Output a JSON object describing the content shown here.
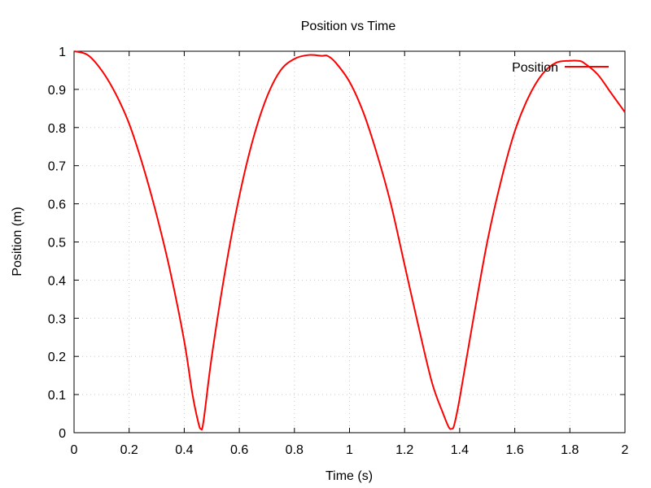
{
  "chart_data": {
    "type": "line",
    "title": "Position vs Time",
    "xlabel": "Time (s)",
    "ylabel": "Position (m)",
    "xlim": [
      0,
      2
    ],
    "ylim": [
      0,
      1
    ],
    "grid": true,
    "legend_position": "top-right",
    "x_ticks": [
      0,
      0.2,
      0.4,
      0.6,
      0.8,
      1,
      1.2,
      1.4,
      1.6,
      1.8,
      2
    ],
    "x_tick_labels": [
      "0",
      "0.2",
      "0.4",
      "0.6",
      "0.8",
      "1",
      "1.2",
      "1.4",
      "1.6",
      "1.8",
      "2"
    ],
    "y_ticks": [
      0,
      0.1,
      0.2,
      0.3,
      0.4,
      0.5,
      0.6,
      0.7,
      0.8,
      0.9,
      1
    ],
    "y_tick_labels": [
      "0",
      "0.1",
      "0.2",
      "0.3",
      "0.4",
      "0.5",
      "0.6",
      "0.7",
      "0.8",
      "0.9",
      "1"
    ],
    "series": [
      {
        "name": "Position",
        "color": "#ff0000",
        "x": [
          0,
          0.05,
          0.1,
          0.15,
          0.2,
          0.25,
          0.3,
          0.35,
          0.4,
          0.43,
          0.45,
          0.46,
          0.47,
          0.5,
          0.55,
          0.6,
          0.65,
          0.7,
          0.75,
          0.8,
          0.85,
          0.9,
          0.92,
          0.95,
          1.0,
          1.05,
          1.1,
          1.15,
          1.2,
          1.25,
          1.3,
          1.34,
          1.36,
          1.37,
          1.38,
          1.4,
          1.45,
          1.5,
          1.55,
          1.6,
          1.65,
          1.7,
          1.75,
          1.8,
          1.83,
          1.85,
          1.9,
          1.95,
          2.0
        ],
        "y": [
          1.0,
          0.99,
          0.95,
          0.89,
          0.81,
          0.7,
          0.57,
          0.42,
          0.24,
          0.1,
          0.03,
          0.01,
          0.03,
          0.2,
          0.43,
          0.62,
          0.77,
          0.88,
          0.95,
          0.98,
          0.99,
          0.988,
          0.988,
          0.97,
          0.92,
          0.84,
          0.73,
          0.6,
          0.44,
          0.28,
          0.13,
          0.05,
          0.015,
          0.01,
          0.02,
          0.09,
          0.3,
          0.5,
          0.66,
          0.79,
          0.88,
          0.94,
          0.97,
          0.975,
          0.975,
          0.97,
          0.94,
          0.89,
          0.84
        ]
      }
    ]
  }
}
